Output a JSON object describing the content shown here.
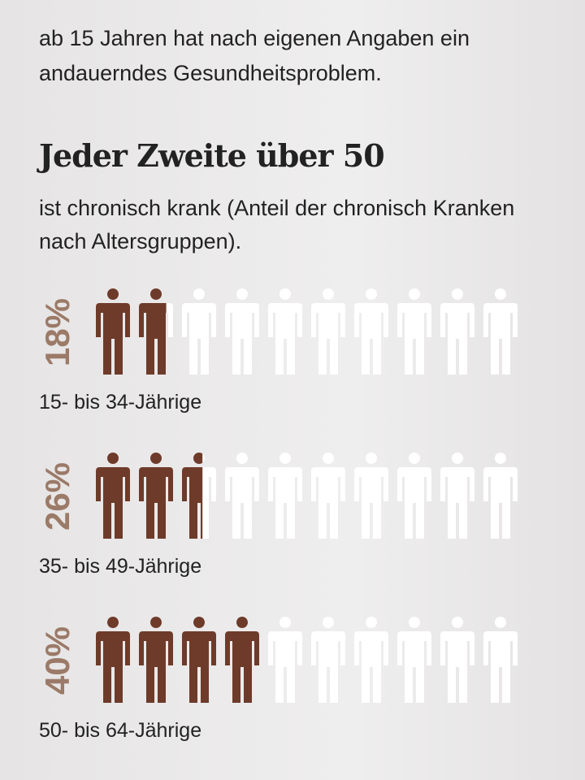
{
  "intro": "ab 15 Jahren hat nach eigenen Angaben ein andauerndes Gesundheitsproblem.",
  "chart_data": {
    "type": "pictogram",
    "title": "Jeder Zweite über 50",
    "subtitle": "ist chronisch krank (Anteil der chronisch Kranken nach Altersgruppen).",
    "categories": [
      "15- bis 34-Jährige",
      "35- bis 49-Jährige",
      "50- bis 64-Jährige"
    ],
    "values": [
      18,
      26,
      40
    ],
    "value_labels": [
      "18%",
      "26%",
      "40%"
    ],
    "ylim": [
      0,
      100
    ],
    "color": "#6e3b2a",
    "empty_color": "#ffffff",
    "label_color": "#9b7a68"
  }
}
